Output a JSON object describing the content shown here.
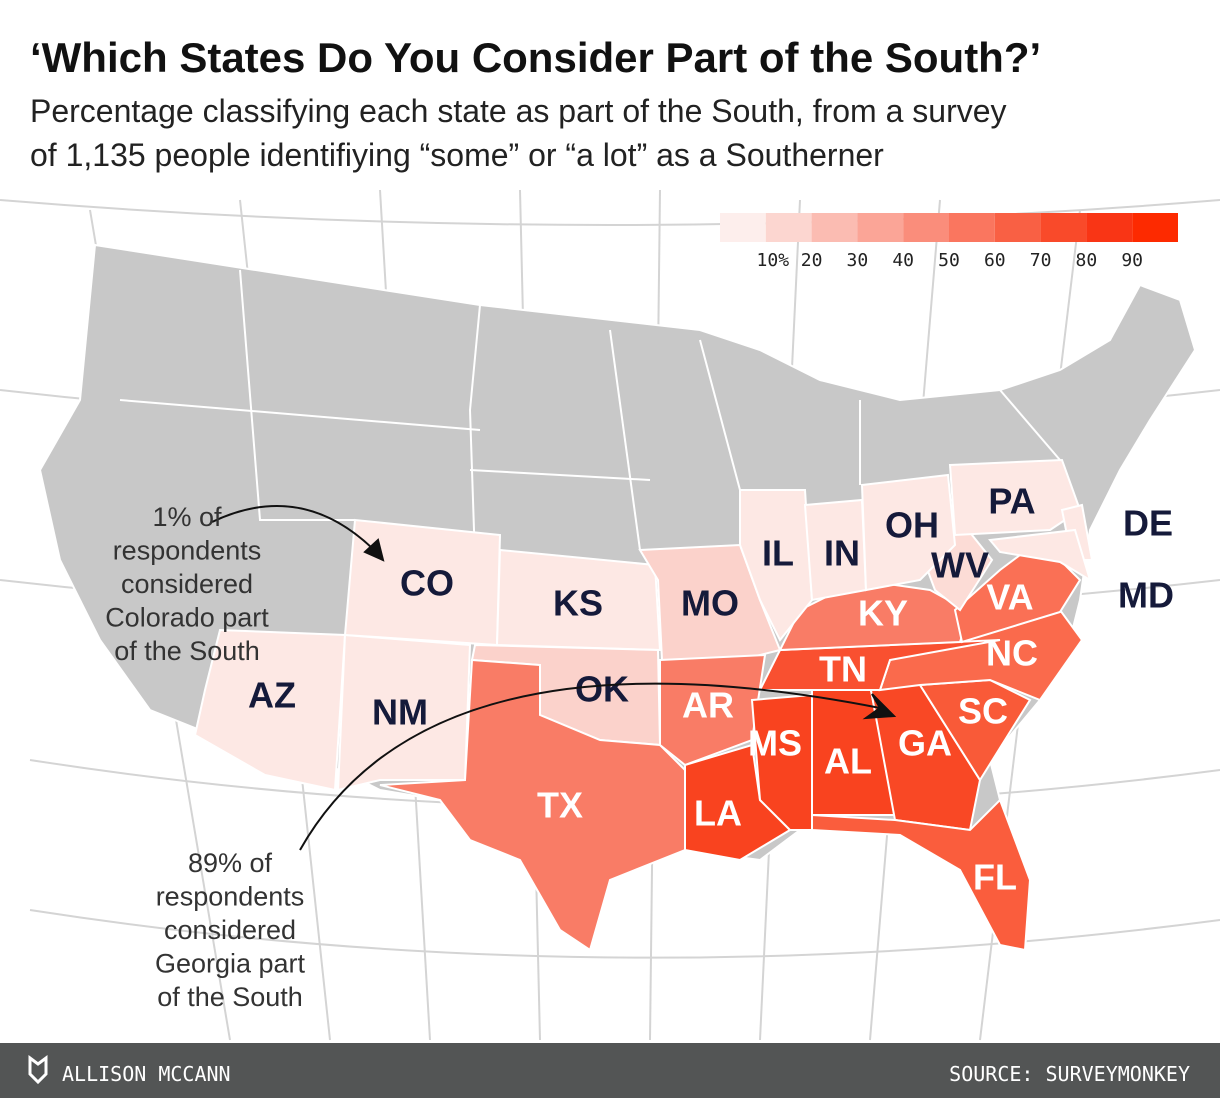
{
  "title": "‘Which States Do You Consider Part of the South?’",
  "subtitle": [
    "Percentage classifying each state as part of the South, from a survey",
    "of 1,135 people identifiying “some” or “a lot” as a Southerner"
  ],
  "legend": {
    "colors": [
      "#fdeeec",
      "#fcd6d0",
      "#fbbcb2",
      "#fba597",
      "#fa8d7b",
      "#fa765f",
      "#f96044",
      "#f94a2a",
      "#f93515",
      "#fd2a00"
    ],
    "labels": [
      "10%",
      "20",
      "30",
      "40",
      "50",
      "60",
      "70",
      "80",
      "90"
    ]
  },
  "states": [
    {
      "label": "AZ",
      "color": "#fde8e4",
      "text_color": "#151a3a"
    },
    {
      "label": "NM",
      "color": "#fde8e4",
      "text_color": "#151a3a"
    },
    {
      "label": "CO",
      "color": "#fde8e4",
      "text_color": "#151a3a"
    },
    {
      "label": "KS",
      "color": "#fde8e4",
      "text_color": "#151a3a"
    },
    {
      "label": "OK",
      "color": "#fbd2cb",
      "text_color": "#151a3a"
    },
    {
      "label": "TX",
      "color": "#f97c66",
      "text_color": "#ffffff"
    },
    {
      "label": "MO",
      "color": "#fbd2cb",
      "text_color": "#151a3a"
    },
    {
      "label": "AR",
      "color": "#f97c66",
      "text_color": "#ffffff"
    },
    {
      "label": "LA",
      "color": "#f9431f",
      "text_color": "#ffffff"
    },
    {
      "label": "MS",
      "color": "#f9431f",
      "text_color": "#ffffff"
    },
    {
      "label": "AL",
      "color": "#f9431f",
      "text_color": "#ffffff"
    },
    {
      "label": "GA",
      "color": "#f94825",
      "text_color": "#ffffff"
    },
    {
      "label": "FL",
      "color": "#fa5d3d",
      "text_color": "#ffffff"
    },
    {
      "label": "SC",
      "color": "#f95a38",
      "text_color": "#ffffff"
    },
    {
      "label": "NC",
      "color": "#fa6a4c",
      "text_color": "#ffffff"
    },
    {
      "label": "TN",
      "color": "#f95030",
      "text_color": "#ffffff"
    },
    {
      "label": "KY",
      "color": "#f97c66",
      "text_color": "#ffffff"
    },
    {
      "label": "VA",
      "color": "#fa7055",
      "text_color": "#ffffff"
    },
    {
      "label": "WV",
      "color": "#fcdcd6",
      "text_color": "#151a3a"
    },
    {
      "label": "IL",
      "color": "#fde8e4",
      "text_color": "#151a3a"
    },
    {
      "label": "IN",
      "color": "#fde8e4",
      "text_color": "#151a3a"
    },
    {
      "label": "OH",
      "color": "#fde8e4",
      "text_color": "#151a3a"
    },
    {
      "label": "PA",
      "color": "#fde8e4",
      "text_color": "#151a3a"
    },
    {
      "label": "DE",
      "color": "#fde8e4",
      "text_color": "#151a3a"
    },
    {
      "label": "MD",
      "color": "#fde8e4",
      "text_color": "#151a3a"
    }
  ],
  "annotations": [
    [
      "1% of",
      "respondents",
      "considered",
      "Colorado part",
      "of the South"
    ],
    [
      "89% of",
      "respondents",
      "considered",
      "Georgia part",
      "of the South"
    ]
  ],
  "footer": {
    "author": "ALLISON MCCANN",
    "source": "SOURCE: SURVEYMONKEY"
  }
}
